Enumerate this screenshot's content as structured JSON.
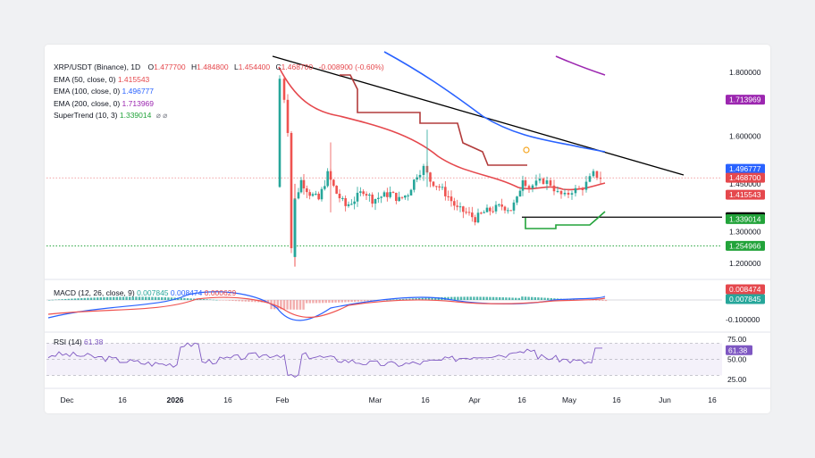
{
  "header": {
    "symbol": "XRP/USDT (Binance), 1D",
    "o_label": "O",
    "o_value": "1.477700",
    "h_label": "H",
    "h_value": "1.484800",
    "l_label": "L",
    "l_value": "1.454400",
    "c_label": "C",
    "c_value": "1.468700",
    "change": "-0.008900 (-0.60%)"
  },
  "indicators": [
    {
      "label": "EMA (50, close, 0)",
      "value": "1.415543",
      "color": "#e5484d"
    },
    {
      "label": "EMA (100, close, 0)",
      "value": "1.496777",
      "color": "#2962ff"
    },
    {
      "label": "EMA (200, close, 0)",
      "value": "1.713969",
      "color": "#9c27b0"
    },
    {
      "label": "SuperTrend (10, 3)",
      "value": "1.339014",
      "color": "#22a33a",
      "icons": "⌀ ⌀"
    }
  ],
  "macd": {
    "label": "MACD (12, 26, close, 9)",
    "v1": "0.007845",
    "v2": "0.008474",
    "v3": "0.000629"
  },
  "rsi": {
    "label": "RSI (14)",
    "value": "61.38"
  },
  "chart_data": {
    "type": "candlestick",
    "price_ticks": [
      "1.800000",
      "1.600000",
      "1.450000",
      "1.300000",
      "1.200000"
    ],
    "price_tick_values": [
      1.8,
      1.6,
      1.45,
      1.3,
      1.2
    ],
    "price_labels": [
      {
        "text": "1.713969",
        "value": 1.713969,
        "color": "#9c27b0"
      },
      {
        "text": "1.496777",
        "value": 1.496777,
        "color": "#2962ff"
      },
      {
        "text": "1.468700",
        "value": 1.4687,
        "color": "#e5484d"
      },
      {
        "text": "1.415543",
        "value": 1.415543,
        "color": "#e5484d"
      },
      {
        "text": "1.345000",
        "value": 1.345,
        "color": "#000000"
      },
      {
        "text": "1.339014",
        "value": 1.339014,
        "color": "#22a33a"
      },
      {
        "text": "1.254966",
        "value": 1.254966,
        "color": "#22a33a"
      }
    ],
    "macd_ticks": [
      "0.008474",
      "0.007845",
      "-0.100000"
    ],
    "rsi_ticks": [
      "75.00",
      "61.38",
      "50.00",
      "25.00"
    ],
    "x_labels": [
      "Dec",
      "16",
      "2026",
      "16",
      "Feb",
      "Mar",
      "16",
      "Apr",
      "16",
      "May",
      "16",
      "Jun",
      "16"
    ],
    "horizontal_support": 1.345,
    "dotted_level": 1.254966,
    "last_close": 1.4687
  }
}
